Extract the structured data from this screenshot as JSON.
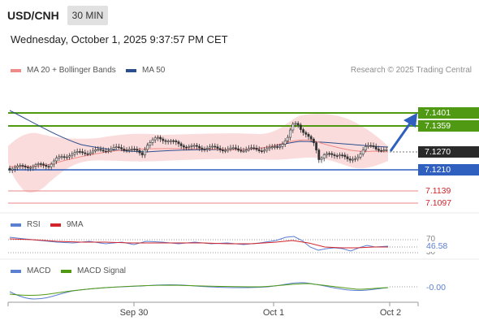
{
  "header": {
    "symbol": "USD/CNH",
    "timeframe": "30 MIN",
    "datetime": "Wednesday, October 1, 2025 9:37:57 PM CET"
  },
  "legend": {
    "ma20": "MA 20 + Bollinger Bands",
    "ma50": "MA 50",
    "copyright": "Research © 2025 Trading Central",
    "ma20_color": "#f08a86",
    "ma50_color": "#2d4e8e"
  },
  "levels": {
    "resistance2": "7.1401",
    "resistance1": "7.1359",
    "last": "7.1270",
    "pivot": "7.1210",
    "support1": "7.1139",
    "support2": "7.1097",
    "green": "#4f9a12",
    "blue": "#2f5fbf",
    "red": "#d2232a"
  },
  "rsi": {
    "label": "RSI",
    "ma_label": "9MA",
    "level_high": "70",
    "level_low": "30",
    "value": "46.58",
    "color": "#5b7fd1",
    "ma_color": "#d2232a"
  },
  "macd": {
    "label": "MACD",
    "signal_label": "MACD Signal",
    "value": "-0.00",
    "color": "#5b7fd1",
    "signal_color": "#4f9a12"
  },
  "xaxis": {
    "ticks": [
      "Sep 30",
      "Oct 1",
      "Oct 2"
    ]
  }
}
